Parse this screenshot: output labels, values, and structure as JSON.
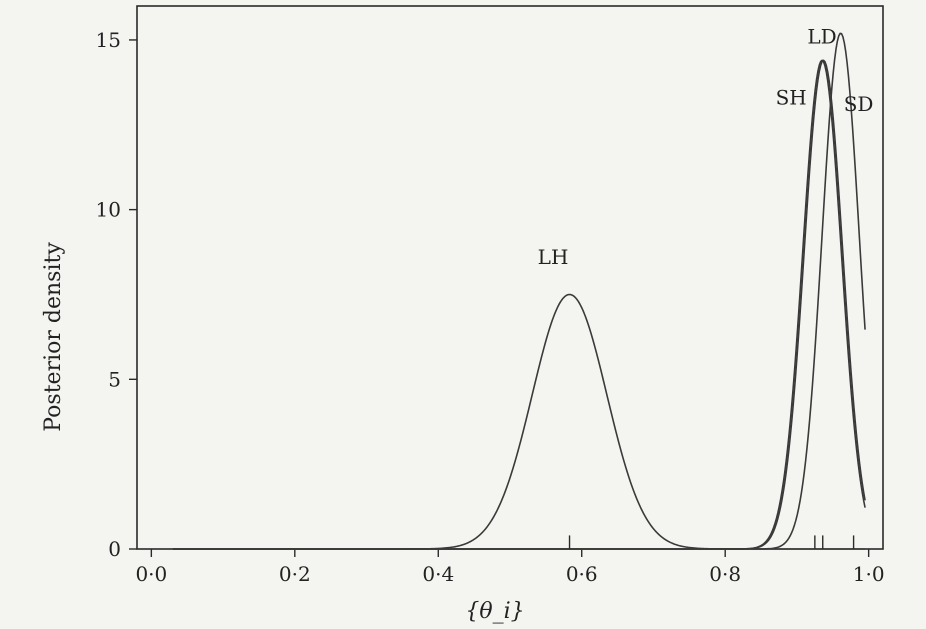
{
  "chart_data": {
    "type": "line",
    "xlabel": "{θ_i}",
    "ylabel": "Posterior density",
    "xlim": [
      -0.02,
      1.02
    ],
    "ylim": [
      0,
      16
    ],
    "x_ticks": [
      {
        "value": 0.0,
        "label": "0·0"
      },
      {
        "value": 0.2,
        "label": "0·2"
      },
      {
        "value": 0.4,
        "label": "0·4"
      },
      {
        "value": 0.6,
        "label": "0·6"
      },
      {
        "value": 0.8,
        "label": "0·8"
      },
      {
        "value": 1.0,
        "label": "1·0"
      }
    ],
    "y_ticks": [
      {
        "value": 0,
        "label": "0"
      },
      {
        "value": 5,
        "label": "5"
      },
      {
        "value": 10,
        "label": "10"
      },
      {
        "value": 15,
        "label": "15"
      }
    ],
    "series": [
      {
        "name": "LH",
        "peak_x": 0.583,
        "peak_y": 7.5,
        "sd": 0.052,
        "label_x": 0.56,
        "label_y": 8.4
      },
      {
        "name": "SH",
        "peak_x": 0.935,
        "peak_y": 14.4,
        "sd": 0.027,
        "label_x": 0.892,
        "label_y": 13.1
      },
      {
        "name": "LD",
        "peak_x": 0.937,
        "peak_y": 14.4,
        "sd": 0.027,
        "label_x": 0.935,
        "label_y": 14.9
      },
      {
        "name": "SD",
        "peak_x": 0.961,
        "peak_y": 15.2,
        "sd": 0.026,
        "label_x": 0.986,
        "label_y": 12.9
      }
    ],
    "markers": [
      {
        "x": 0.583,
        "y_top": 0.4
      },
      {
        "x": 0.925,
        "y_top": 0.4
      },
      {
        "x": 0.936,
        "y_top": 0.4
      },
      {
        "x": 0.979,
        "y_top": 0.4
      }
    ]
  }
}
